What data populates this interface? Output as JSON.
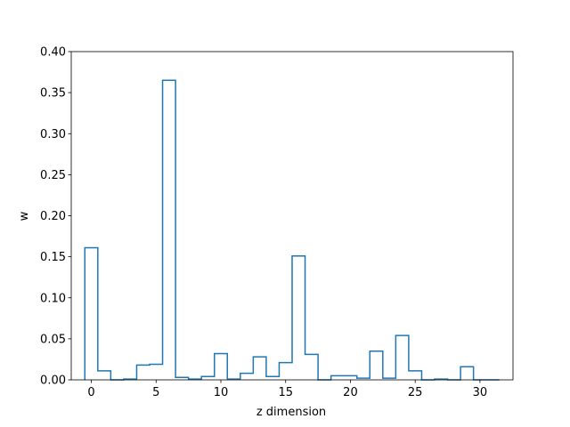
{
  "chart_data": {
    "type": "line",
    "subtype": "step-histogram",
    "title": "",
    "xlabel": "z dimension",
    "ylabel": "w",
    "xlim": [
      -1.55,
      32.55
    ],
    "ylim": [
      0,
      0.4
    ],
    "xticks": [
      0,
      5,
      10,
      15,
      20,
      25,
      30
    ],
    "yticks": [
      0.0,
      0.05,
      0.1,
      0.15,
      0.2,
      0.25,
      0.3,
      0.35,
      0.4
    ],
    "xtick_labels": [
      "0",
      "5",
      "10",
      "15",
      "20",
      "25",
      "30"
    ],
    "ytick_labels": [
      "0.00",
      "0.05",
      "0.10",
      "0.15",
      "0.20",
      "0.25",
      "0.30",
      "0.35",
      "0.40"
    ],
    "grid": false,
    "legend": "none",
    "color": "#1f77b4",
    "x": [
      0,
      1,
      2,
      3,
      4,
      5,
      6,
      7,
      8,
      9,
      10,
      11,
      12,
      13,
      14,
      15,
      16,
      17,
      18,
      19,
      20,
      21,
      22,
      23,
      24,
      25,
      26,
      27,
      28,
      29,
      30,
      31
    ],
    "values": [
      0.161,
      0.011,
      0.0,
      0.001,
      0.018,
      0.019,
      0.365,
      0.003,
      0.001,
      0.004,
      0.032,
      0.001,
      0.008,
      0.028,
      0.004,
      0.021,
      0.151,
      0.031,
      0.0,
      0.005,
      0.005,
      0.002,
      0.035,
      0.002,
      0.054,
      0.011,
      0.0,
      0.001,
      0.0,
      0.016,
      0.0,
      0.0
    ]
  }
}
